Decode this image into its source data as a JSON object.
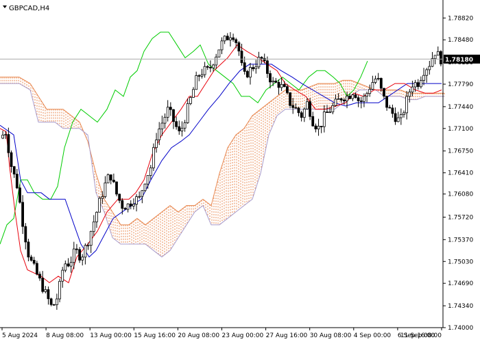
{
  "chart_data": {
    "type": "candlestick",
    "title": "GBPCAD,H4",
    "symbol": "GBPCAD",
    "timeframe": "H4",
    "current_price": 1.7818,
    "current_price_label": "1.78180",
    "ylim": [
      1.74,
      1.791
    ],
    "y_ticks": [
      1.7882,
      1.7848,
      1.7813,
      1.7779,
      1.7744,
      1.771,
      1.7675,
      1.7641,
      1.7608,
      1.7572,
      1.7537,
      1.7503,
      1.7469,
      1.7434,
      1.74
    ],
    "y_tick_labels": [
      "1.78820",
      "1.78480",
      "1.78130",
      "1.77790",
      "1.77440",
      "1.77100",
      "1.76750",
      "1.76410",
      "1.76080",
      "1.75720",
      "1.75370",
      "1.75030",
      "1.74690",
      "1.74340",
      "1.74000"
    ],
    "x_tick_labels": [
      "5 Aug 2024",
      "8 Aug 08:00",
      "13 Aug 00:00",
      "15 Aug 16:00",
      "20 Aug 08:00",
      "23 Aug 00:00",
      "27 Aug 16:00",
      "30 Aug 08:00",
      "4 Sep 00:00",
      "6 Sep 16:00",
      "11 Sep 08:00"
    ],
    "close_path": [
      [
        1.7695,
        1.7705,
        1.765,
        1.762,
        1.756,
        1.751,
        1.749,
        1.747,
        1.745,
        1.743,
        1.745,
        1.75
      ],
      [
        1.75,
        1.752,
        1.751,
        1.753,
        1.756,
        1.759,
        1.762,
        1.764,
        1.761,
        1.759,
        1.759,
        1.76
      ],
      [
        1.76,
        1.763,
        1.765,
        1.77,
        1.772,
        1.774,
        1.772,
        1.77,
        1.773,
        1.776,
        1.779,
        1.78
      ],
      [
        1.78,
        1.782,
        1.784,
        1.785,
        1.786,
        1.784,
        1.779,
        1.78,
        1.781,
        1.782,
        1.78,
        1.778
      ],
      [
        1.778,
        1.777,
        1.775,
        1.774,
        1.773,
        1.775,
        1.772,
        1.771,
        1.773,
        1.774,
        1.775,
        1.776
      ],
      [
        1.776,
        1.777,
        1.775,
        1.776,
        1.778,
        1.779,
        1.776,
        1.774,
        1.773,
        1.772,
        1.775,
        1.778
      ],
      [
        1.778,
        1.78,
        1.781,
        1.783,
        1.7818
      ]
    ],
    "tenkan_sen": [
      [
        0,
        1.771
      ],
      [
        9,
        1.7705
      ],
      [
        14,
        1.765
      ],
      [
        22,
        1.758
      ],
      [
        30,
        1.752
      ],
      [
        40,
        1.749
      ],
      [
        60,
        1.748
      ],
      [
        72,
        1.747
      ],
      [
        85,
        1.748
      ],
      [
        100,
        1.747
      ],
      [
        112,
        1.751
      ],
      [
        120,
        1.752
      ],
      [
        128,
        1.753
      ],
      [
        142,
        1.755
      ],
      [
        156,
        1.758
      ],
      [
        172,
        1.76
      ],
      [
        188,
        1.76
      ],
      [
        198,
        1.761
      ],
      [
        210,
        1.763
      ],
      [
        222,
        1.767
      ],
      [
        236,
        1.77
      ],
      [
        250,
        1.772
      ],
      [
        264,
        1.774
      ],
      [
        276,
        1.776
      ],
      [
        288,
        1.776
      ],
      [
        300,
        1.778
      ],
      [
        312,
        1.78
      ],
      [
        322,
        1.781
      ],
      [
        332,
        1.782
      ],
      [
        346,
        1.784
      ],
      [
        360,
        1.783
      ],
      [
        376,
        1.782
      ],
      [
        390,
        1.781
      ],
      [
        404,
        1.78
      ],
      [
        416,
        1.778
      ],
      [
        430,
        1.777
      ],
      [
        446,
        1.776
      ],
      [
        460,
        1.774
      ],
      [
        474,
        1.774
      ],
      [
        490,
        1.7745
      ],
      [
        504,
        1.775
      ],
      [
        516,
        1.7765
      ],
      [
        530,
        1.776
      ],
      [
        546,
        1.777
      ],
      [
        560,
        1.777
      ],
      [
        576,
        1.778
      ],
      [
        590,
        1.778
      ],
      [
        606,
        1.777
      ],
      [
        620,
        1.7765
      ],
      [
        632,
        1.7765
      ],
      [
        644,
        1.777
      ]
    ],
    "kijun_sen": [
      [
        0,
        1.7715
      ],
      [
        20,
        1.77
      ],
      [
        30,
        1.763
      ],
      [
        40,
        1.761
      ],
      [
        60,
        1.761
      ],
      [
        72,
        1.76
      ],
      [
        95,
        1.76
      ],
      [
        108,
        1.756
      ],
      [
        118,
        1.753
      ],
      [
        130,
        1.751
      ],
      [
        140,
        1.752
      ],
      [
        150,
        1.754
      ],
      [
        165,
        1.757
      ],
      [
        178,
        1.758
      ],
      [
        192,
        1.759
      ],
      [
        206,
        1.76
      ],
      [
        220,
        1.763
      ],
      [
        236,
        1.766
      ],
      [
        250,
        1.768
      ],
      [
        264,
        1.769
      ],
      [
        276,
        1.77
      ],
      [
        290,
        1.772
      ],
      [
        304,
        1.774
      ],
      [
        320,
        1.776
      ],
      [
        334,
        1.778
      ],
      [
        350,
        1.78
      ],
      [
        364,
        1.781
      ],
      [
        380,
        1.781
      ],
      [
        396,
        1.781
      ],
      [
        410,
        1.78
      ],
      [
        426,
        1.779
      ],
      [
        440,
        1.778
      ],
      [
        456,
        1.777
      ],
      [
        472,
        1.776
      ],
      [
        488,
        1.775
      ],
      [
        504,
        1.7745
      ],
      [
        520,
        1.775
      ],
      [
        536,
        1.775
      ],
      [
        552,
        1.775
      ],
      [
        566,
        1.776
      ],
      [
        580,
        1.777
      ],
      [
        594,
        1.778
      ],
      [
        610,
        1.778
      ],
      [
        626,
        1.778
      ],
      [
        644,
        1.778
      ]
    ],
    "chikou_span": [
      [
        0,
        1.753
      ],
      [
        10,
        1.756
      ],
      [
        20,
        1.757
      ],
      [
        30,
        1.763
      ],
      [
        40,
        1.763
      ],
      [
        50,
        1.761
      ],
      [
        62,
        1.76
      ],
      [
        74,
        1.76
      ],
      [
        84,
        1.762
      ],
      [
        94,
        1.768
      ],
      [
        106,
        1.772
      ],
      [
        118,
        1.774
      ],
      [
        130,
        1.773
      ],
      [
        142,
        1.772
      ],
      [
        156,
        1.774
      ],
      [
        168,
        1.777
      ],
      [
        180,
        1.776
      ],
      [
        190,
        1.779
      ],
      [
        200,
        1.78
      ],
      [
        210,
        1.783
      ],
      [
        222,
        1.785
      ],
      [
        234,
        1.786
      ],
      [
        246,
        1.786
      ],
      [
        258,
        1.784
      ],
      [
        270,
        1.782
      ],
      [
        282,
        1.783
      ],
      [
        292,
        1.784
      ],
      [
        304,
        1.781
      ],
      [
        316,
        1.78
      ],
      [
        328,
        1.779
      ],
      [
        340,
        1.778
      ],
      [
        352,
        1.776
      ],
      [
        364,
        1.776
      ],
      [
        376,
        1.775
      ],
      [
        388,
        1.777
      ],
      [
        400,
        1.778
      ],
      [
        412,
        1.779
      ],
      [
        424,
        1.778
      ],
      [
        436,
        1.777
      ],
      [
        450,
        1.779
      ],
      [
        462,
        1.78
      ],
      [
        474,
        1.78
      ],
      [
        486,
        1.779
      ],
      [
        496,
        1.778
      ],
      [
        506,
        1.776
      ],
      [
        516,
        1.777
      ],
      [
        526,
        1.779
      ],
      [
        536,
        1.7815
      ]
    ],
    "senkou_span_a": [
      [
        0,
        1.779
      ],
      [
        14,
        1.779
      ],
      [
        28,
        1.779
      ],
      [
        44,
        1.778
      ],
      [
        56,
        1.776
      ],
      [
        68,
        1.774
      ],
      [
        80,
        1.774
      ],
      [
        92,
        1.774
      ],
      [
        104,
        1.773
      ],
      [
        116,
        1.772
      ],
      [
        128,
        1.769
      ],
      [
        140,
        1.764
      ],
      [
        152,
        1.76
      ],
      [
        164,
        1.758
      ],
      [
        176,
        1.756
      ],
      [
        188,
        1.756
      ],
      [
        200,
        1.757
      ],
      [
        212,
        1.756
      ],
      [
        224,
        1.757
      ],
      [
        236,
        1.758
      ],
      [
        248,
        1.759
      ],
      [
        260,
        1.758
      ],
      [
        272,
        1.759
      ],
      [
        284,
        1.759
      ],
      [
        296,
        1.76
      ],
      [
        308,
        1.759
      ],
      [
        320,
        1.764
      ],
      [
        332,
        1.768
      ],
      [
        344,
        1.77
      ],
      [
        356,
        1.771
      ],
      [
        368,
        1.773
      ],
      [
        380,
        1.774
      ],
      [
        392,
        1.775
      ],
      [
        404,
        1.776
      ],
      [
        416,
        1.777
      ],
      [
        428,
        1.777
      ],
      [
        440,
        1.777
      ],
      [
        452,
        1.7775
      ],
      [
        464,
        1.778
      ],
      [
        476,
        1.778
      ],
      [
        488,
        1.778
      ],
      [
        500,
        1.7785
      ],
      [
        512,
        1.7785
      ],
      [
        524,
        1.778
      ],
      [
        536,
        1.7775
      ],
      [
        548,
        1.777
      ],
      [
        560,
        1.777
      ],
      [
        572,
        1.777
      ],
      [
        584,
        1.777
      ],
      [
        596,
        1.7765
      ],
      [
        608,
        1.7765
      ],
      [
        620,
        1.7765
      ],
      [
        632,
        1.7765
      ],
      [
        648,
        1.7765
      ]
    ],
    "senkou_span_b": [
      [
        0,
        1.778
      ],
      [
        14,
        1.778
      ],
      [
        28,
        1.778
      ],
      [
        44,
        1.777
      ],
      [
        56,
        1.772
      ],
      [
        68,
        1.772
      ],
      [
        80,
        1.772
      ],
      [
        92,
        1.771
      ],
      [
        104,
        1.771
      ],
      [
        116,
        1.771
      ],
      [
        128,
        1.77
      ],
      [
        140,
        1.761
      ],
      [
        152,
        1.758
      ],
      [
        164,
        1.754
      ],
      [
        176,
        1.753
      ],
      [
        188,
        1.753
      ],
      [
        200,
        1.753
      ],
      [
        212,
        1.753
      ],
      [
        224,
        1.752
      ],
      [
        236,
        1.751
      ],
      [
        248,
        1.752
      ],
      [
        260,
        1.754
      ],
      [
        272,
        1.756
      ],
      [
        284,
        1.758
      ],
      [
        296,
        1.759
      ],
      [
        308,
        1.756
      ],
      [
        320,
        1.756
      ],
      [
        332,
        1.757
      ],
      [
        344,
        1.758
      ],
      [
        356,
        1.759
      ],
      [
        368,
        1.76
      ],
      [
        380,
        1.764
      ],
      [
        392,
        1.77
      ],
      [
        404,
        1.773
      ],
      [
        416,
        1.774
      ],
      [
        428,
        1.774
      ],
      [
        440,
        1.774
      ],
      [
        452,
        1.774
      ],
      [
        464,
        1.774
      ],
      [
        476,
        1.774
      ],
      [
        488,
        1.774
      ],
      [
        500,
        1.775
      ],
      [
        512,
        1.776
      ],
      [
        524,
        1.777
      ],
      [
        536,
        1.777
      ],
      [
        548,
        1.777
      ],
      [
        560,
        1.776
      ],
      [
        572,
        1.776
      ],
      [
        584,
        1.776
      ],
      [
        596,
        1.7755
      ],
      [
        608,
        1.7755
      ],
      [
        620,
        1.776
      ],
      [
        632,
        1.776
      ],
      [
        648,
        1.776
      ]
    ],
    "colors": {
      "bull_candle": "#ffffff",
      "bear_candle": "#000000",
      "candle_outline": "#000000",
      "tenkan_sen": "#e8000b",
      "kijun_sen": "#0000c8",
      "chikou_span": "#00cc00",
      "cloud_bullish": "#e8874f",
      "cloud_bearish": "#a89ccc",
      "price_line": "#a9a9a9",
      "price_label_bg": "#000000",
      "axis": "#000000"
    }
  }
}
